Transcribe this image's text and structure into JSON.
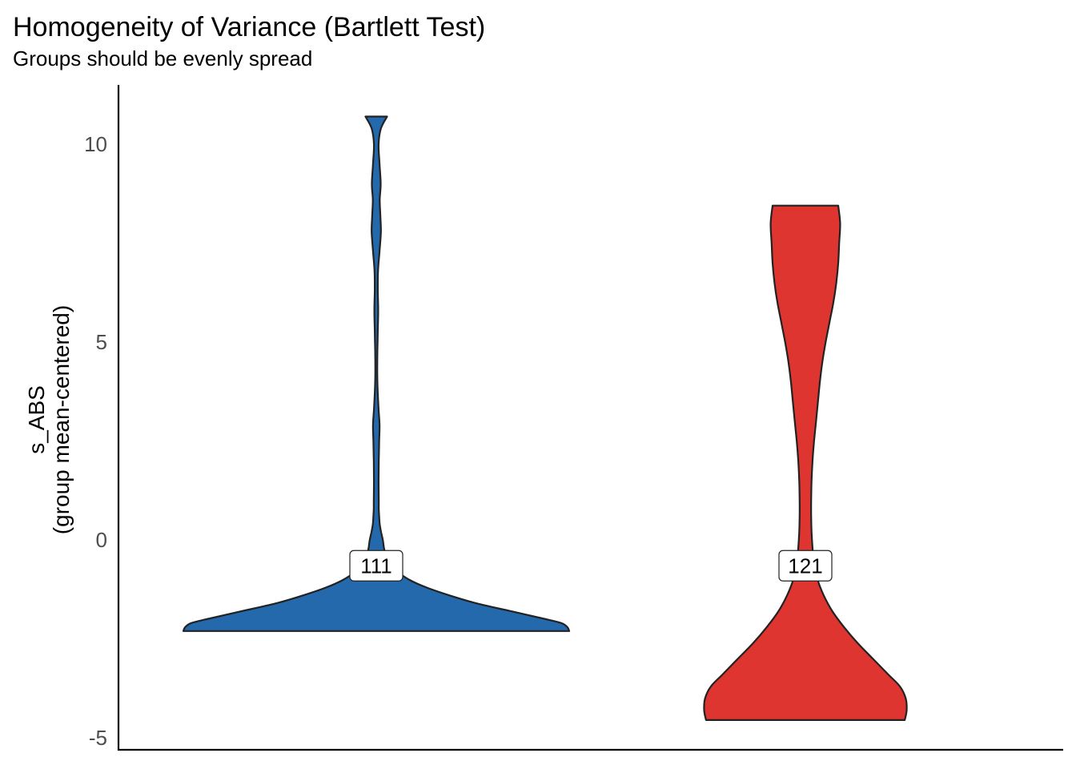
{
  "chart_data": {
    "type": "violin",
    "title": "Homogeneity of Variance (Bartlett Test)",
    "subtitle": "Groups should be evenly spread",
    "ylabel_line1": "s_ABS",
    "ylabel_line2": "(group mean-centered)",
    "xlabel": "",
    "ylim": [
      -5.3,
      11.5
    ],
    "yticks": [
      -5,
      0,
      5,
      10
    ],
    "ytick_labels": [
      "-5",
      "0",
      "5",
      "10"
    ],
    "grid": false,
    "legend": "none",
    "series": [
      {
        "label": "111",
        "color": "#2369ab",
        "label_y": -0.65,
        "ymin": -2.3,
        "ymax": 10.7,
        "density": [
          [
            -2.3,
            1.0
          ],
          [
            -2.2,
            0.99
          ],
          [
            -2.1,
            0.96
          ],
          [
            -2.0,
            0.88
          ],
          [
            -1.8,
            0.7
          ],
          [
            -1.6,
            0.52
          ],
          [
            -1.4,
            0.38
          ],
          [
            -1.2,
            0.26
          ],
          [
            -1.0,
            0.17
          ],
          [
            -0.8,
            0.11
          ],
          [
            -0.6,
            0.07
          ],
          [
            -0.4,
            0.05
          ],
          [
            -0.2,
            0.04
          ],
          [
            0.0,
            0.034
          ],
          [
            0.2,
            0.025
          ],
          [
            0.4,
            0.018
          ],
          [
            0.6,
            0.015
          ],
          [
            0.8,
            0.013
          ],
          [
            1.0,
            0.013
          ],
          [
            1.5,
            0.012
          ],
          [
            2.0,
            0.013
          ],
          [
            2.5,
            0.015
          ],
          [
            2.9,
            0.017
          ],
          [
            3.3,
            0.012
          ],
          [
            3.8,
            0.007
          ],
          [
            4.3,
            0.005
          ],
          [
            4.8,
            0.006
          ],
          [
            5.3,
            0.008
          ],
          [
            5.8,
            0.01
          ],
          [
            6.3,
            0.008
          ],
          [
            6.8,
            0.009
          ],
          [
            7.3,
            0.017
          ],
          [
            7.8,
            0.024
          ],
          [
            8.2,
            0.021
          ],
          [
            8.6,
            0.018
          ],
          [
            9.0,
            0.023
          ],
          [
            9.5,
            0.017
          ],
          [
            10.0,
            0.012
          ],
          [
            10.4,
            0.024
          ],
          [
            10.7,
            0.056
          ]
        ]
      },
      {
        "label": "121",
        "color": "#de3530",
        "label_y": -0.65,
        "ymin": -4.55,
        "ymax": 8.45,
        "density": [
          [
            -4.55,
            0.515
          ],
          [
            -4.3,
            0.525
          ],
          [
            -4.0,
            0.52
          ],
          [
            -3.7,
            0.49
          ],
          [
            -3.4,
            0.43
          ],
          [
            -3.0,
            0.35
          ],
          [
            -2.6,
            0.27
          ],
          [
            -2.2,
            0.2
          ],
          [
            -1.8,
            0.14
          ],
          [
            -1.4,
            0.095
          ],
          [
            -1.0,
            0.063
          ],
          [
            -0.6,
            0.045
          ],
          [
            -0.2,
            0.037
          ],
          [
            0.2,
            0.032
          ],
          [
            0.6,
            0.03
          ],
          [
            1.0,
            0.03
          ],
          [
            1.5,
            0.032
          ],
          [
            2.0,
            0.037
          ],
          [
            2.5,
            0.045
          ],
          [
            3.0,
            0.055
          ],
          [
            3.5,
            0.065
          ],
          [
            4.0,
            0.075
          ],
          [
            4.5,
            0.088
          ],
          [
            5.0,
            0.105
          ],
          [
            5.5,
            0.125
          ],
          [
            6.0,
            0.145
          ],
          [
            6.5,
            0.16
          ],
          [
            7.0,
            0.17
          ],
          [
            7.5,
            0.175
          ],
          [
            8.0,
            0.18
          ],
          [
            8.45,
            0.17
          ]
        ]
      }
    ]
  }
}
